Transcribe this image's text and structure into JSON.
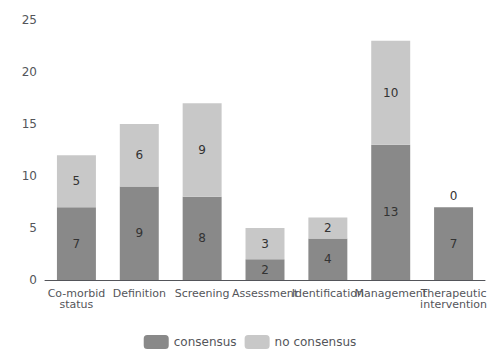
{
  "chart_data": {
    "type": "bar",
    "categories": [
      "Co-morbid\nstatus",
      "Definition",
      "Screening",
      "Assessment",
      "Identification",
      "Management",
      "Therapeutic\nintervention"
    ],
    "series": [
      {
        "name": "consensus",
        "color": "#898989",
        "values": [
          7,
          9,
          8,
          2,
          4,
          13,
          7
        ]
      },
      {
        "name": "no consensus",
        "color": "#c8c8c8",
        "values": [
          5,
          6,
          9,
          3,
          2,
          10,
          0
        ]
      }
    ],
    "ylim": [
      0,
      25
    ],
    "yticks": [
      0,
      5,
      10,
      15,
      20,
      25
    ],
    "stacked": true,
    "data_labels": true,
    "grid": false,
    "legend": "bottom"
  }
}
